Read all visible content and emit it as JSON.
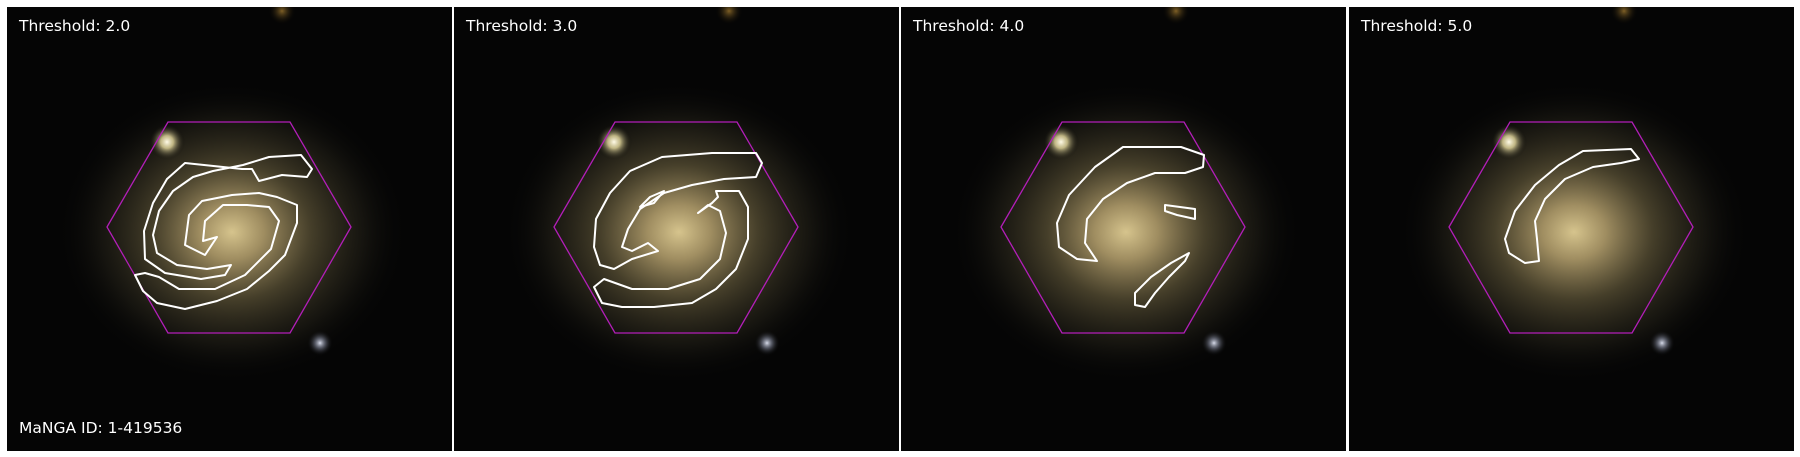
{
  "figure": {
    "manga_id": "MaNGA ID: 1-419536",
    "hexagon_color": "#b21eb8",
    "contour_color": "#ffffff",
    "panels": [
      {
        "threshold_label": "Threshold: 2.0"
      },
      {
        "threshold_label": "Threshold: 3.0"
      },
      {
        "threshold_label": "Threshold: 4.0"
      },
      {
        "threshold_label": "Threshold: 5.0"
      }
    ]
  }
}
